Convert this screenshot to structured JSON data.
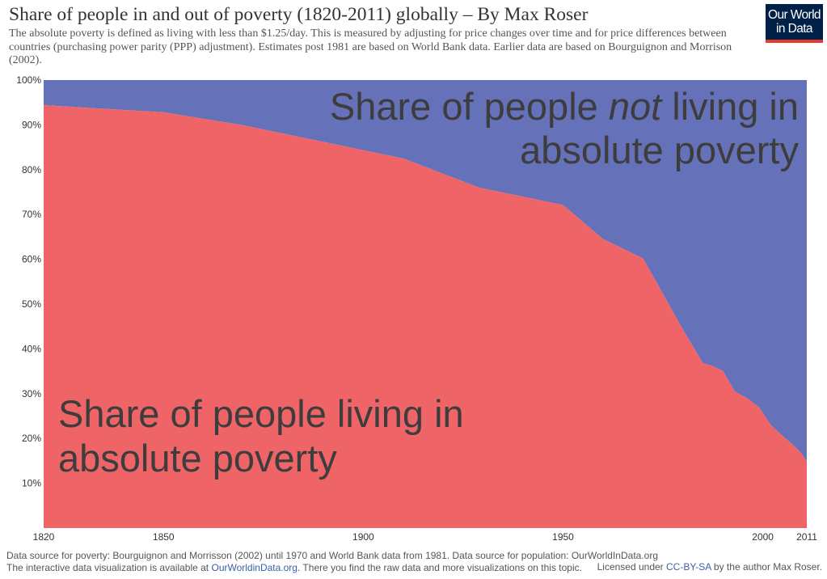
{
  "title": "Share of people in and out of poverty (1820-2011) globally – By Max Roser",
  "subtitle": "The absolute poverty is defined as living with less than $1.25/day. This is measured by adjusting for price changes over time and for price differences between countries (purchasing power parity (PPP) adjustment). Estimates post 1981 are based on World Bank data. Earlier data are based on Bourguignon and Morrison (2002).",
  "logo": {
    "line1": "Our World",
    "line2": "in Data"
  },
  "colors": {
    "poverty": "#ef6467",
    "not_poverty": "#6571b8",
    "logo_bg": "#002147",
    "logo_accent": "#e63a2e"
  },
  "chart_data": {
    "type": "area",
    "stacked": true,
    "x": [
      1820,
      1850,
      1870,
      1890,
      1910,
      1929,
      1950,
      1960,
      1970,
      1980,
      1985,
      1987,
      1990,
      1993,
      1996,
      1999,
      2002,
      2005,
      2008,
      2010,
      2011
    ],
    "series": [
      {
        "name": "Share of people living in absolute poverty",
        "color": "#ef6467",
        "values": [
          94.4,
          92.8,
          89.9,
          86.2,
          82.5,
          76.0,
          72.1,
          64.5,
          60.2,
          44.3,
          36.8,
          36.3,
          35.1,
          30.5,
          29.0,
          27.0,
          23.0,
          20.5,
          18.2,
          16.3,
          14.8
        ]
      },
      {
        "name": "Share of people not living in absolute poverty",
        "color": "#6571b8",
        "values": [
          5.6,
          7.2,
          10.1,
          13.8,
          17.5,
          24.0,
          27.9,
          35.5,
          39.8,
          55.7,
          63.2,
          63.7,
          64.9,
          69.5,
          71.0,
          73.0,
          77.0,
          79.5,
          81.8,
          83.7,
          85.2
        ]
      }
    ],
    "x_ticks": [
      "1820",
      "1850",
      "1900",
      "1950",
      "2000",
      "2011"
    ],
    "x_tick_values": [
      1820,
      1850,
      1900,
      1950,
      2000,
      2011
    ],
    "y_ticks": [
      "10%",
      "20%",
      "30%",
      "40%",
      "50%",
      "60%",
      "70%",
      "80%",
      "90%",
      "100%"
    ],
    "y_tick_values": [
      10,
      20,
      30,
      40,
      50,
      60,
      70,
      80,
      90,
      100
    ],
    "xlim": [
      1820,
      2011
    ],
    "ylim": [
      0,
      100
    ],
    "grid": false,
    "annotations": {
      "not_poverty": {
        "pre": "Share of people ",
        "em": "not",
        "post": " living in",
        "line2": "absolute poverty"
      },
      "poverty": {
        "line1": "Share of people living in",
        "line2": "absolute poverty"
      }
    }
  },
  "footer": {
    "line1": "Data source for poverty: Bourguignon and Morrisson (2002) until 1970 and World Bank data from 1981. Data source for population: OurWorldInData.org",
    "line2_pre": "The interactive data visualization is available at ",
    "line2_link": "OurWorldinData.org",
    "line2_post": ". There you find the raw data and more visualizations on this topic.",
    "license_pre": "Licensed under ",
    "license_link": "CC-BY-SA",
    "license_post": " by the author Max Roser."
  }
}
